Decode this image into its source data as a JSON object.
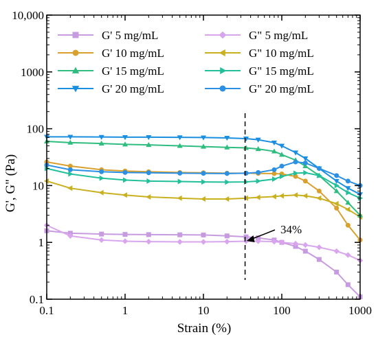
{
  "chart_data": {
    "type": "line",
    "xscale": "log",
    "yscale": "log",
    "xlim": [
      0.1,
      1000
    ],
    "ylim": [
      0.1,
      10000
    ],
    "xlabel": "Strain (%)",
    "ylabel": "G', G\" (Pa)",
    "xticks": [
      {
        "value": 0.1,
        "label": "0.1"
      },
      {
        "value": 1,
        "label": "1"
      },
      {
        "value": 10,
        "label": "10"
      },
      {
        "value": 100,
        "label": "100"
      },
      {
        "value": 1000,
        "label": "1000"
      }
    ],
    "yticks": [
      {
        "value": 0.1,
        "label": "0.1"
      },
      {
        "value": 1,
        "label": "1"
      },
      {
        "value": 10,
        "label": "10"
      },
      {
        "value": 100,
        "label": "100"
      },
      {
        "value": 1000,
        "label": "1000"
      },
      {
        "value": 10000,
        "label": "10,000"
      }
    ],
    "grid": false,
    "legend": "top",
    "series": [
      {
        "name": "G' 5 mg/mL",
        "color": "#c79be0",
        "marker": "square",
        "x": [
          0.1,
          0.2,
          0.5,
          1,
          2,
          5,
          10,
          20,
          35,
          50,
          80,
          100,
          150,
          200,
          300,
          500,
          700,
          1000
        ],
        "y": [
          1.6,
          1.45,
          1.4,
          1.38,
          1.37,
          1.36,
          1.35,
          1.3,
          1.25,
          1.2,
          1.1,
          1.0,
          0.85,
          0.7,
          0.5,
          0.3,
          0.18,
          0.11
        ]
      },
      {
        "name": "G\" 5 mg/mL",
        "color": "#d9a6ee",
        "marker": "diamond",
        "x": [
          0.1,
          0.2,
          0.5,
          1,
          2,
          5,
          10,
          20,
          35,
          50,
          80,
          100,
          150,
          200,
          300,
          500,
          700,
          1000
        ],
        "y": [
          2.0,
          1.3,
          1.1,
          1.05,
          1.03,
          1.02,
          1.02,
          1.03,
          1.05,
          1.05,
          1.03,
          1.0,
          0.95,
          0.9,
          0.82,
          0.7,
          0.6,
          0.48
        ]
      },
      {
        "name": "G' 10 mg/mL",
        "color": "#d9a02e",
        "marker": "circle",
        "x": [
          0.1,
          0.2,
          0.5,
          1,
          2,
          5,
          10,
          20,
          35,
          50,
          80,
          100,
          150,
          200,
          300,
          500,
          700,
          1000
        ],
        "y": [
          26,
          22,
          19,
          18,
          17.5,
          17,
          16.8,
          16.5,
          16.5,
          16.4,
          16.2,
          16,
          14.5,
          12,
          8,
          4,
          2,
          1.1
        ]
      },
      {
        "name": "G\" 10 mg/mL",
        "color": "#c9b01e",
        "marker": "triangle-left",
        "x": [
          0.1,
          0.2,
          0.5,
          1,
          2,
          5,
          10,
          20,
          35,
          50,
          80,
          100,
          150,
          200,
          300,
          500,
          700,
          1000
        ],
        "y": [
          12,
          9,
          7.5,
          6.8,
          6.3,
          6.0,
          5.8,
          5.8,
          6.0,
          6.2,
          6.4,
          6.6,
          6.8,
          6.6,
          6.0,
          4.8,
          3.8,
          2.8
        ]
      },
      {
        "name": "G' 15 mg/mL",
        "color": "#2ebd7e",
        "marker": "triangle-up",
        "x": [
          0.1,
          0.2,
          0.5,
          1,
          2,
          5,
          10,
          20,
          35,
          50,
          80,
          100,
          150,
          200,
          300,
          500,
          700,
          1000
        ],
        "y": [
          60,
          57,
          55,
          53,
          52,
          50,
          48.5,
          47,
          46,
          44,
          40,
          35,
          28,
          22,
          15,
          8,
          5,
          3
        ]
      },
      {
        "name": "G\" 15 mg/mL",
        "color": "#22c09a",
        "marker": "triangle-right",
        "x": [
          0.1,
          0.2,
          0.5,
          1,
          2,
          5,
          10,
          20,
          35,
          50,
          80,
          100,
          150,
          200,
          300,
          500,
          700,
          1000
        ],
        "y": [
          20,
          16,
          13.5,
          12.5,
          12,
          11.8,
          11.6,
          11.5,
          11.6,
          12,
          13,
          14.5,
          16.5,
          16.8,
          15,
          10,
          7.5,
          6
        ]
      },
      {
        "name": "G' 20 mg/mL",
        "color": "#1a8fe0",
        "marker": "triangle-down",
        "x": [
          0.1,
          0.2,
          0.5,
          1,
          2,
          5,
          10,
          20,
          35,
          50,
          80,
          100,
          150,
          200,
          300,
          500,
          700,
          1000
        ],
        "y": [
          72,
          72,
          71.5,
          71,
          71,
          70.5,
          70,
          69,
          67,
          64,
          57,
          50,
          38,
          30,
          20,
          12,
          9,
          7
        ]
      },
      {
        "name": "G\" 20 mg/mL",
        "color": "#2b8fe3",
        "marker": "circle",
        "x": [
          0.1,
          0.2,
          0.5,
          1,
          2,
          5,
          10,
          20,
          35,
          50,
          80,
          100,
          150,
          200,
          300,
          500,
          700,
          1000
        ],
        "y": [
          23,
          19,
          17.5,
          17,
          16.8,
          16.5,
          16.4,
          16.3,
          16.5,
          17,
          19,
          22,
          26,
          25,
          20,
          15,
          12,
          10
        ]
      }
    ],
    "annotation": {
      "label": "34%",
      "x": 34
    }
  }
}
